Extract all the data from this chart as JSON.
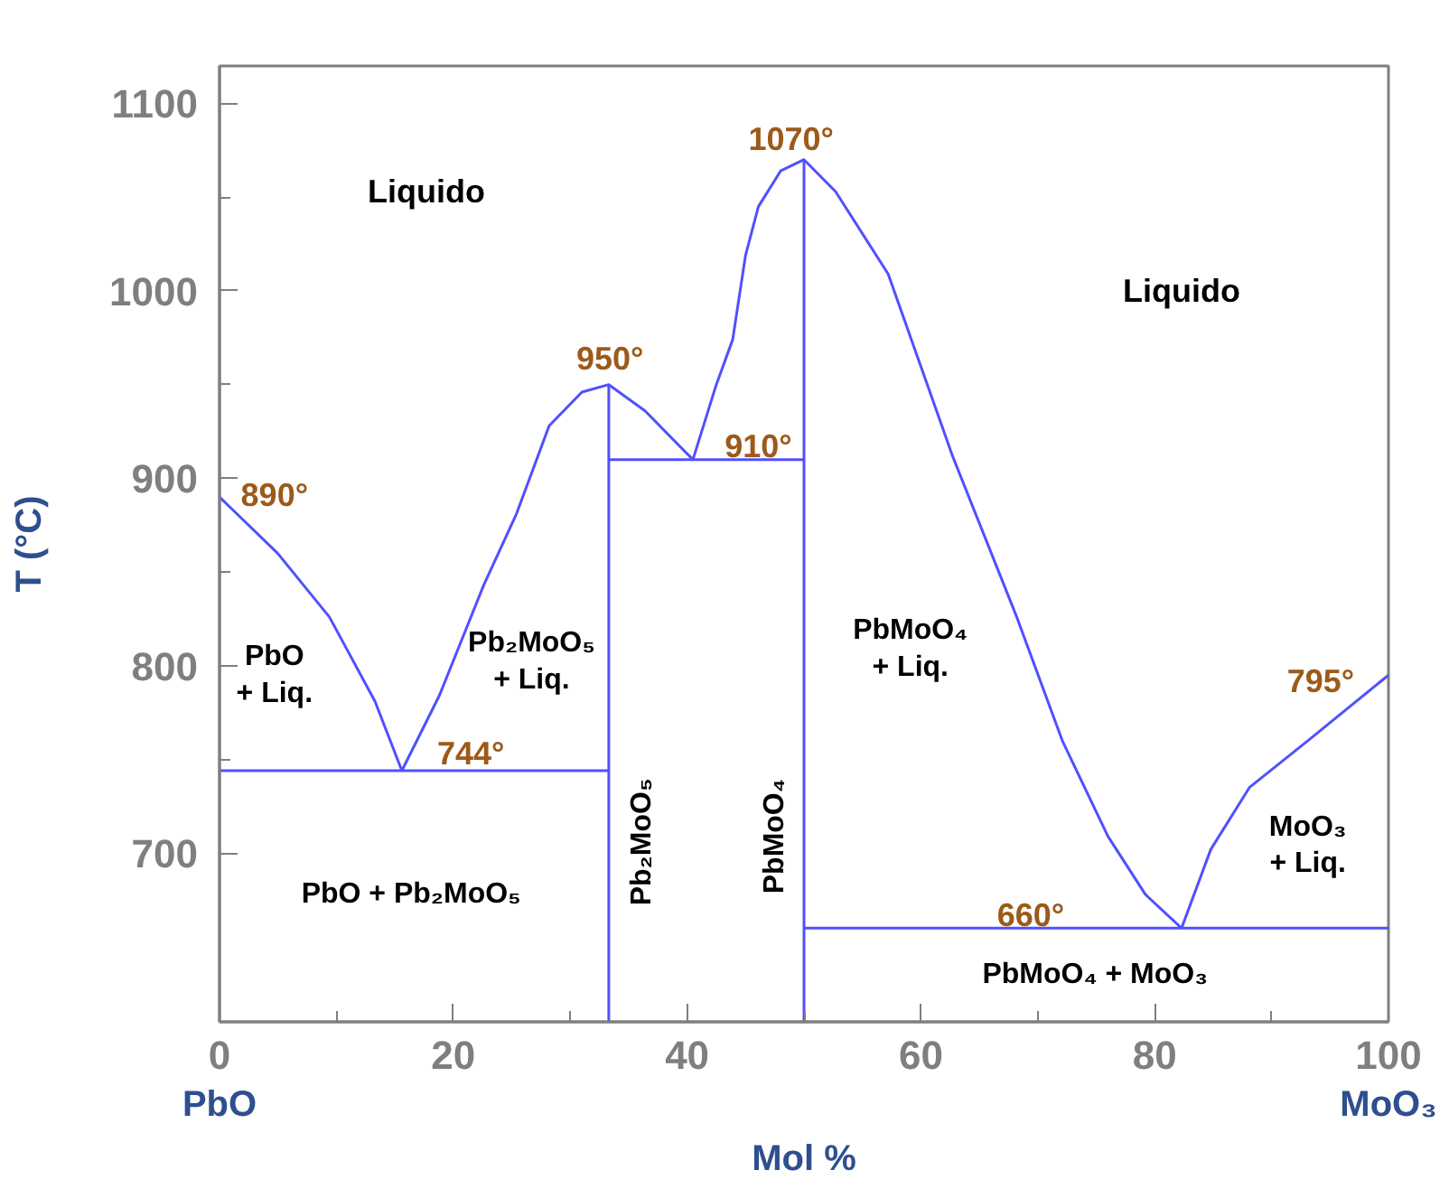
{
  "chart_data": {
    "type": "line",
    "xlabel": "Mol %",
    "ylabel": "T (°C)",
    "xlim": [
      0,
      100
    ],
    "ylim": [
      610,
      1120
    ],
    "xticks": [
      0,
      20,
      40,
      60,
      80,
      100
    ],
    "yticks": [
      700,
      800,
      900,
      1000,
      1100
    ],
    "grid": false,
    "marker": "none",
    "line_style": "solid",
    "series": [
      {
        "color": "#5050ff",
        "x": [
          0,
          4.97,
          9.4,
          13.3,
          15.6
        ],
        "values": [
          890,
          860,
          826,
          781,
          744
        ]
      },
      {
        "color": "#5050ff",
        "x": [
          15.6,
          18.8,
          22.6,
          25.4,
          28.2,
          31.0,
          33.3,
          36.4,
          40.5
        ],
        "values": [
          744,
          784,
          843,
          881,
          928,
          946,
          950,
          936,
          910
        ]
      },
      {
        "color": "#5050ff",
        "x": [
          40.5,
          42.5,
          43.9,
          45.0,
          46.1,
          48.0,
          50,
          52.7,
          57.2,
          62.7,
          68.2,
          72.1,
          76.0,
          79.2,
          82.3
        ],
        "values": [
          910,
          950,
          974,
          1019,
          1045,
          1064,
          1070,
          1053,
          1009,
          912,
          826,
          760,
          709,
          678,
          660
        ]
      },
      {
        "color": "#5050ff",
        "x": [
          82.3,
          84.8,
          88.1,
          93.1,
          100
        ],
        "values": [
          660,
          702,
          735,
          760,
          795
        ]
      },
      {
        "color": "#5050ff",
        "x": [
          0,
          33.3
        ],
        "values": [
          744,
          744
        ]
      },
      {
        "color": "#5050ff",
        "x": [
          33.3,
          50
        ],
        "values": [
          910,
          910
        ]
      },
      {
        "color": "#5050ff",
        "x": [
          50,
          100
        ],
        "values": [
          660,
          660
        ]
      },
      {
        "color": "#5050ff",
        "x": [
          33.3,
          33.3
        ],
        "values": [
          610,
          950
        ]
      },
      {
        "color": "#5050ff",
        "x": [
          50,
          50
        ],
        "values": [
          610,
          1070
        ]
      }
    ],
    "annotations": [
      "890°",
      "744°",
      "950°",
      "910°",
      "1070°",
      "660°",
      "795°",
      "Liquido",
      "Liquido",
      "PbO\n+ Liq.",
      "Pb₂MoO₅\n+ Liq.",
      "PbO + Pb₂MoO₅",
      "Pb₂MoO₅",
      "PbMoO₄",
      "PbMoO₄\n+ Liq.",
      "MoO₃\n+ Liq.",
      "PbMoO₄ + MoO₃",
      "PbO",
      "MoO₃"
    ]
  }
}
